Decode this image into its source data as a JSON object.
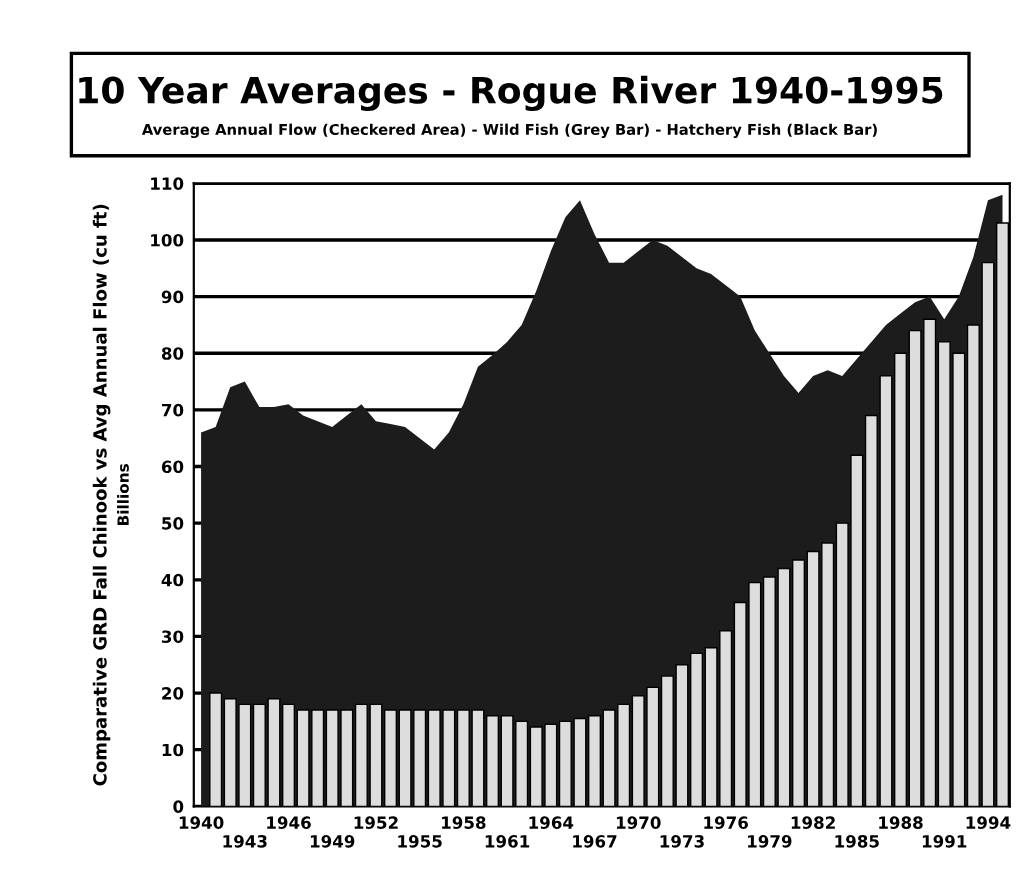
{
  "chart_data": {
    "type": "bar",
    "title": "10 Year Averages - Rogue River 1940-1995",
    "subtitle": "Average Annual Flow (Checkered Area) - Wild Fish (Grey Bar) - Hatchery Fish (Black Bar)",
    "ylabel": "Comparative GRD Fall Chinook vs Avg Annual Flow (cu ft)",
    "annotations": [
      "Billions"
    ],
    "categories": [
      "1940",
      null,
      null,
      "1943",
      null,
      null,
      "1946",
      null,
      null,
      "1949",
      null,
      null,
      "1952",
      null,
      null,
      "1955",
      null,
      null,
      "1958",
      null,
      null,
      "1961",
      null,
      null,
      "1964",
      null,
      null,
      "1967",
      null,
      null,
      "1970",
      null,
      null,
      "1973",
      null,
      null,
      "1976",
      null,
      null,
      "1979",
      null,
      null,
      "1982",
      null,
      null,
      "1985",
      null,
      null,
      "1988",
      null,
      null,
      "1991",
      null,
      null,
      "1994",
      null
    ],
    "series": [
      {
        "type": "area",
        "color": "#1c1c1c",
        "values": [
          66,
          67,
          74,
          75,
          70.5,
          70.5,
          71,
          69,
          68,
          67,
          69,
          71,
          68,
          67.5,
          67,
          65,
          63,
          66,
          71,
          77.6,
          79.7,
          82,
          85,
          91,
          98,
          104,
          107,
          101,
          96,
          96,
          98,
          100,
          99,
          97,
          95,
          94,
          92,
          90,
          84,
          80,
          76,
          73,
          76,
          77,
          76,
          79,
          82,
          85,
          87,
          89,
          90,
          86,
          90,
          97,
          107,
          108
        ]
      },
      {
        "color": "#dddddd",
        "values": [
          null,
          20,
          19,
          18,
          18,
          19,
          18,
          17,
          17,
          17,
          17,
          18,
          18,
          17,
          17,
          17,
          17,
          17,
          17,
          17,
          16,
          16,
          15,
          14,
          14.5,
          15,
          15.5,
          16,
          17,
          18,
          19.5,
          21,
          23,
          25,
          27,
          28,
          31,
          36,
          39.5,
          40.5,
          42,
          43.5,
          45,
          46.5,
          50,
          62,
          69,
          76,
          80,
          84,
          86,
          82,
          80,
          85,
          96,
          103
        ]
      }
    ],
    "ylim": [
      0,
      110
    ],
    "yticks": [
      0,
      10,
      20,
      30,
      40,
      50,
      60,
      70,
      80,
      90,
      100,
      110
    ],
    "grid": "y",
    "legend": false
  }
}
